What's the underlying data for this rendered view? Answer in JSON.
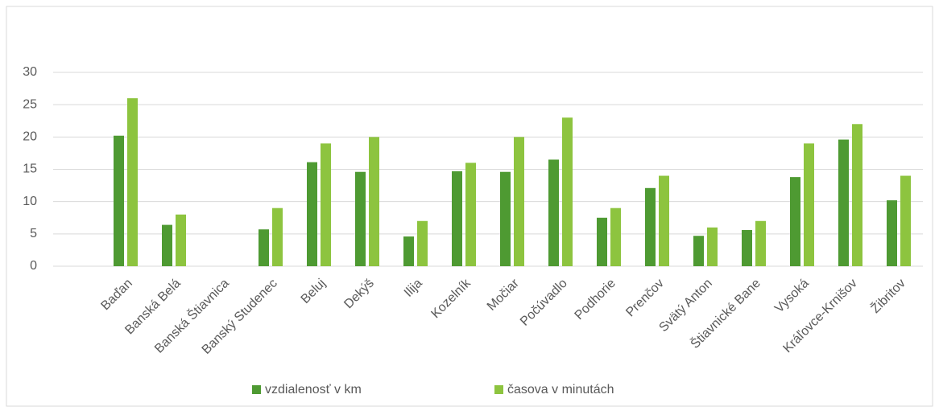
{
  "chart_data": {
    "type": "bar",
    "categories": [
      "Baďan",
      "Banská Belá",
      "Banská Štiavnica",
      "Banský Studenec",
      "Beluj",
      "Dekýš",
      "Ilija",
      "Kozelník",
      "Močiar",
      "Počúvadlo",
      "Podhorie",
      "Prenčov",
      "Svätý Anton",
      "Štiavnické Bane",
      "Vysoká",
      "Kráľovce-Krnišov",
      "Žibritov"
    ],
    "series": [
      {
        "name": "vzdialenosť v km",
        "color": "#4e9a32",
        "values": [
          20.2,
          6.4,
          null,
          5.7,
          16.1,
          14.6,
          4.6,
          14.7,
          14.6,
          16.5,
          7.5,
          12.1,
          4.7,
          5.6,
          13.8,
          19.6,
          10.2
        ]
      },
      {
        "name": "časova v minutách",
        "color": "#8dc43f",
        "values": [
          26,
          8,
          null,
          9,
          19,
          20,
          7,
          16,
          20,
          23,
          9,
          14,
          6,
          7,
          19,
          22,
          14
        ]
      }
    ],
    "ylim": [
      0,
      30
    ],
    "yticks": [
      0,
      5,
      10,
      15,
      20,
      25,
      30
    ],
    "grid": true,
    "legend": "bottom"
  }
}
